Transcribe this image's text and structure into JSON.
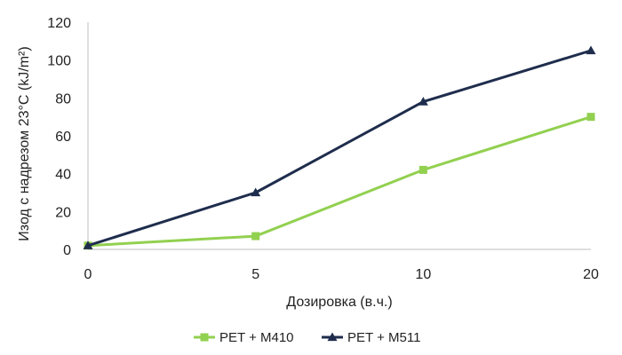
{
  "chart_data": {
    "type": "line",
    "categories": [
      "0",
      "5",
      "10",
      "20"
    ],
    "xlabel": "Дозировка (в.ч.)",
    "ylabel": "Изод с надрезом 23°C (kJ/m²)",
    "ylim": [
      0,
      120
    ],
    "yticks": [
      "0",
      "20",
      "40",
      "60",
      "80",
      "100",
      "120"
    ],
    "grid": false,
    "legend_position": "bottom",
    "series": [
      {
        "name": "PET + M410",
        "values": [
          2,
          7,
          42,
          70
        ],
        "color": "#92d050",
        "marker": "square"
      },
      {
        "name": "PET + M511",
        "values": [
          2,
          30,
          78,
          105
        ],
        "color": "#1f2d4d",
        "marker": "triangle"
      }
    ]
  }
}
